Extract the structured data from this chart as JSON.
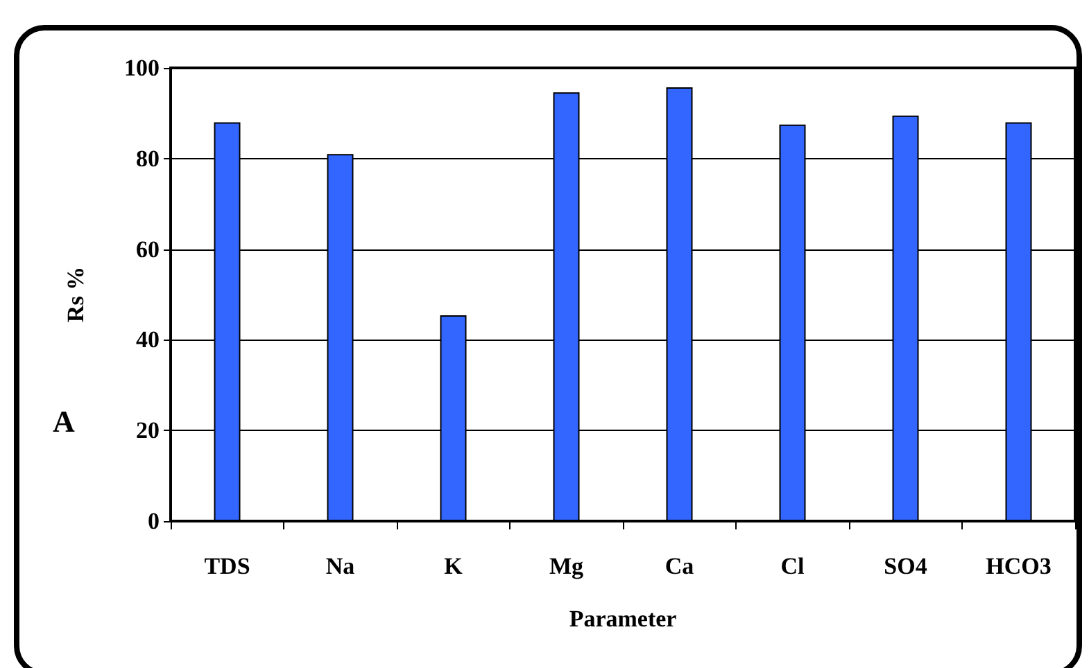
{
  "chart_data": {
    "type": "bar",
    "xlabel": "Parameter",
    "ylabel": "Rs %",
    "annotations": [
      "A"
    ],
    "categories": [
      "TDS",
      "Na",
      "K",
      "Mg",
      "Ca",
      "Cl",
      "SO4",
      "HCO3"
    ],
    "values": [
      88,
      81,
      45.4,
      94.6,
      95.7,
      87.5,
      89.5,
      88
    ],
    "color": "#3366ff",
    "ylim": [
      0,
      100
    ],
    "yticks": [
      0,
      20,
      40,
      60,
      80,
      100
    ],
    "grid": "y"
  }
}
